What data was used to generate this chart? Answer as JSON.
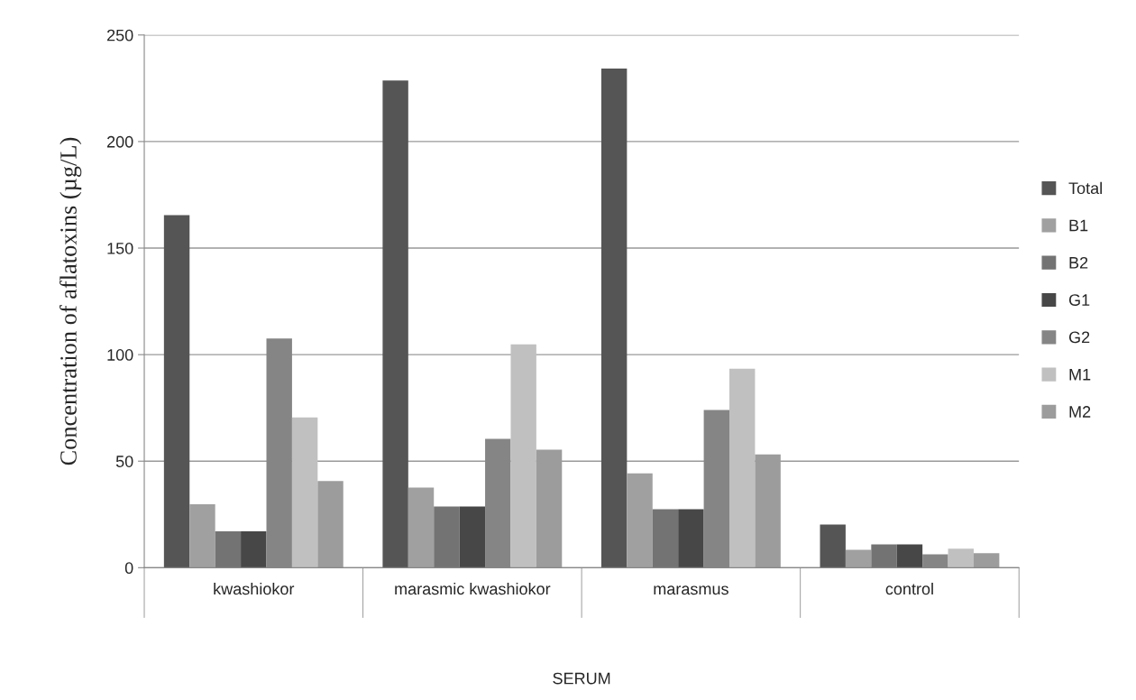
{
  "chart_data": {
    "type": "bar",
    "ylabel": "Concentration of aflatoxins (µg/L)",
    "xlabel": "SERUM",
    "categories": [
      "kwashiokor",
      "marasmic kwashiokor",
      "marasmus",
      "control"
    ],
    "series": [
      {
        "name": "Total",
        "color": "#555555",
        "values": [
          165.5,
          228.6,
          234.3,
          20.3
        ]
      },
      {
        "name": "B1",
        "color": "#a0a0a0",
        "values": [
          29.8,
          37.6,
          44.3,
          8.4
        ]
      },
      {
        "name": "B2",
        "color": "#737373",
        "values": [
          17.1,
          28.7,
          27.5,
          10.9
        ]
      },
      {
        "name": "G1",
        "color": "#474747",
        "values": [
          17.1,
          28.7,
          27.5,
          10.9
        ]
      },
      {
        "name": "G2",
        "color": "#858585",
        "values": [
          107.6,
          60.5,
          74.0,
          6.3
        ]
      },
      {
        "name": "M1",
        "color": "#c0c0c0",
        "values": [
          70.5,
          104.8,
          93.4,
          8.9
        ]
      },
      {
        "name": "M2",
        "color": "#9c9c9c",
        "values": [
          40.7,
          55.4,
          53.2,
          6.8
        ]
      }
    ],
    "ylim": [
      0,
      250
    ],
    "yticks": [
      0,
      50,
      100,
      150,
      200,
      250
    ],
    "grid": "y",
    "legend": "right"
  }
}
